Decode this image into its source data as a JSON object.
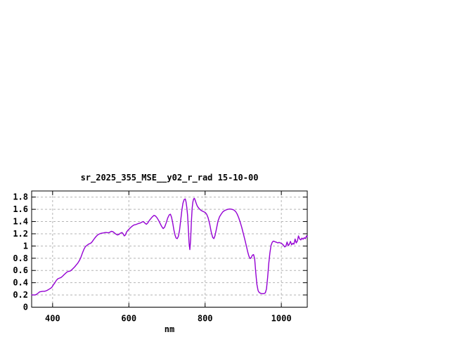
{
  "page": {
    "background": "#ffffff"
  },
  "chart_data": {
    "type": "line",
    "title": "sr_2025_355_MSE__y02_r_rad 15-10-00",
    "xlabel": "nm",
    "ylabel": "",
    "xlim": [
      345,
      1068
    ],
    "ylim": [
      0,
      1.9
    ],
    "grid": true,
    "legend": "none",
    "x_ticks": [
      {
        "v": 400,
        "label": "400"
      },
      {
        "v": 600,
        "label": "600"
      },
      {
        "v": 800,
        "label": "800"
      },
      {
        "v": 1000,
        "label": "1000"
      }
    ],
    "y_ticks": [
      {
        "v": 0,
        "label": "0"
      },
      {
        "v": 0.2,
        "label": "0.2"
      },
      {
        "v": 0.4,
        "label": "0.4"
      },
      {
        "v": 0.6,
        "label": "0.6"
      },
      {
        "v": 0.8,
        "label": "0.8"
      },
      {
        "v": 1,
        "label": "1"
      },
      {
        "v": 1.2,
        "label": "1.2"
      },
      {
        "v": 1.4,
        "label": "1.4"
      },
      {
        "v": 1.6,
        "label": "1.6"
      },
      {
        "v": 1.8,
        "label": "1.8"
      }
    ],
    "colors": {
      "line": "#9400d3",
      "grid": "#b4b4b4",
      "axis": "#000000",
      "text": "#000000",
      "background": "#ffffff"
    },
    "series": [
      {
        "points": [
          [
            345,
            0.2
          ],
          [
            350,
            0.2
          ],
          [
            354,
            0.2
          ],
          [
            358,
            0.21
          ],
          [
            362,
            0.23
          ],
          [
            366,
            0.25
          ],
          [
            370,
            0.255
          ],
          [
            374,
            0.26
          ],
          [
            378,
            0.26
          ],
          [
            382,
            0.265
          ],
          [
            386,
            0.275
          ],
          [
            390,
            0.29
          ],
          [
            394,
            0.305
          ],
          [
            398,
            0.325
          ],
          [
            402,
            0.365
          ],
          [
            406,
            0.4
          ],
          [
            410,
            0.44
          ],
          [
            414,
            0.465
          ],
          [
            418,
            0.475
          ],
          [
            422,
            0.485
          ],
          [
            426,
            0.505
          ],
          [
            430,
            0.53
          ],
          [
            434,
            0.555
          ],
          [
            438,
            0.575
          ],
          [
            442,
            0.585
          ],
          [
            446,
            0.59
          ],
          [
            450,
            0.61
          ],
          [
            454,
            0.635
          ],
          [
            458,
            0.66
          ],
          [
            462,
            0.69
          ],
          [
            466,
            0.72
          ],
          [
            470,
            0.76
          ],
          [
            474,
            0.81
          ],
          [
            478,
            0.88
          ],
          [
            482,
            0.945
          ],
          [
            486,
            0.99
          ],
          [
            490,
            1.01
          ],
          [
            494,
            1.03
          ],
          [
            498,
            1.04
          ],
          [
            502,
            1.055
          ],
          [
            506,
            1.09
          ],
          [
            510,
            1.125
          ],
          [
            514,
            1.155
          ],
          [
            518,
            1.18
          ],
          [
            522,
            1.195
          ],
          [
            526,
            1.205
          ],
          [
            530,
            1.21
          ],
          [
            534,
            1.215
          ],
          [
            538,
            1.22
          ],
          [
            542,
            1.22
          ],
          [
            546,
            1.215
          ],
          [
            550,
            1.225
          ],
          [
            554,
            1.24
          ],
          [
            558,
            1.235
          ],
          [
            562,
            1.215
          ],
          [
            566,
            1.195
          ],
          [
            570,
            1.18
          ],
          [
            574,
            1.19
          ],
          [
            578,
            1.21
          ],
          [
            582,
            1.22
          ],
          [
            585,
            1.2
          ],
          [
            588,
            1.165
          ],
          [
            591,
            1.18
          ],
          [
            594,
            1.23
          ],
          [
            598,
            1.26
          ],
          [
            602,
            1.285
          ],
          [
            606,
            1.31
          ],
          [
            610,
            1.33
          ],
          [
            614,
            1.345
          ],
          [
            618,
            1.35
          ],
          [
            622,
            1.36
          ],
          [
            626,
            1.37
          ],
          [
            630,
            1.375
          ],
          [
            634,
            1.39
          ],
          [
            638,
            1.4
          ],
          [
            642,
            1.375
          ],
          [
            646,
            1.355
          ],
          [
            650,
            1.38
          ],
          [
            654,
            1.42
          ],
          [
            658,
            1.45
          ],
          [
            662,
            1.48
          ],
          [
            666,
            1.5
          ],
          [
            670,
            1.49
          ],
          [
            674,
            1.46
          ],
          [
            678,
            1.42
          ],
          [
            682,
            1.37
          ],
          [
            686,
            1.32
          ],
          [
            690,
            1.285
          ],
          [
            694,
            1.31
          ],
          [
            698,
            1.38
          ],
          [
            702,
            1.46
          ],
          [
            706,
            1.51
          ],
          [
            709,
            1.52
          ],
          [
            712,
            1.47
          ],
          [
            715,
            1.38
          ],
          [
            718,
            1.27
          ],
          [
            721,
            1.18
          ],
          [
            724,
            1.13
          ],
          [
            727,
            1.12
          ],
          [
            730,
            1.16
          ],
          [
            733,
            1.26
          ],
          [
            736,
            1.42
          ],
          [
            739,
            1.58
          ],
          [
            742,
            1.7
          ],
          [
            745,
            1.76
          ],
          [
            748,
            1.77
          ],
          [
            750,
            1.72
          ],
          [
            752,
            1.63
          ],
          [
            754,
            1.5
          ],
          [
            756,
            1.3
          ],
          [
            758,
            1.05
          ],
          [
            760,
            0.94
          ],
          [
            762,
            1.1
          ],
          [
            764,
            1.4
          ],
          [
            766,
            1.62
          ],
          [
            768,
            1.72
          ],
          [
            770,
            1.77
          ],
          [
            772,
            1.78
          ],
          [
            774,
            1.75
          ],
          [
            776,
            1.71
          ],
          [
            779,
            1.66
          ],
          [
            782,
            1.63
          ],
          [
            786,
            1.6
          ],
          [
            790,
            1.58
          ],
          [
            795,
            1.565
          ],
          [
            800,
            1.55
          ],
          [
            804,
            1.52
          ],
          [
            808,
            1.46
          ],
          [
            812,
            1.36
          ],
          [
            816,
            1.23
          ],
          [
            820,
            1.14
          ],
          [
            823,
            1.12
          ],
          [
            826,
            1.17
          ],
          [
            830,
            1.29
          ],
          [
            834,
            1.41
          ],
          [
            838,
            1.48
          ],
          [
            842,
            1.52
          ],
          [
            846,
            1.555
          ],
          [
            850,
            1.575
          ],
          [
            855,
            1.59
          ],
          [
            860,
            1.6
          ],
          [
            865,
            1.605
          ],
          [
            870,
            1.6
          ],
          [
            875,
            1.59
          ],
          [
            880,
            1.565
          ],
          [
            884,
            1.525
          ],
          [
            888,
            1.465
          ],
          [
            892,
            1.39
          ],
          [
            896,
            1.31
          ],
          [
            900,
            1.21
          ],
          [
            904,
            1.11
          ],
          [
            908,
            1.005
          ],
          [
            912,
            0.9
          ],
          [
            915,
            0.835
          ],
          [
            918,
            0.795
          ],
          [
            921,
            0.81
          ],
          [
            924,
            0.85
          ],
          [
            927,
            0.86
          ],
          [
            930,
            0.79
          ],
          [
            933,
            0.56
          ],
          [
            936,
            0.37
          ],
          [
            939,
            0.27
          ],
          [
            942,
            0.24
          ],
          [
            946,
            0.225
          ],
          [
            950,
            0.22
          ],
          [
            954,
            0.22
          ],
          [
            958,
            0.235
          ],
          [
            961,
            0.3
          ],
          [
            964,
            0.48
          ],
          [
            967,
            0.71
          ],
          [
            970,
            0.89
          ],
          [
            973,
            1.01
          ],
          [
            976,
            1.06
          ],
          [
            979,
            1.08
          ],
          [
            982,
            1.075
          ],
          [
            985,
            1.065
          ],
          [
            988,
            1.06
          ],
          [
            991,
            1.05
          ],
          [
            994,
            1.06
          ],
          [
            997,
            1.05
          ],
          [
            1000,
            1.045
          ],
          [
            1003,
            1.03
          ],
          [
            1006,
            1.01
          ],
          [
            1009,
            0.985
          ],
          [
            1012,
            1.0
          ],
          [
            1015,
            1.065
          ],
          [
            1018,
            1.005
          ],
          [
            1021,
            1.03
          ],
          [
            1024,
            1.075
          ],
          [
            1027,
            1.02
          ],
          [
            1030,
            1.045
          ],
          [
            1033,
            1.03
          ],
          [
            1036,
            1.115
          ],
          [
            1039,
            1.05
          ],
          [
            1042,
            1.08
          ],
          [
            1045,
            1.165
          ],
          [
            1048,
            1.115
          ],
          [
            1051,
            1.1
          ],
          [
            1054,
            1.13
          ],
          [
            1057,
            1.11
          ],
          [
            1060,
            1.135
          ],
          [
            1063,
            1.12
          ],
          [
            1066,
            1.165
          ],
          [
            1068,
            1.155
          ]
        ]
      }
    ]
  }
}
